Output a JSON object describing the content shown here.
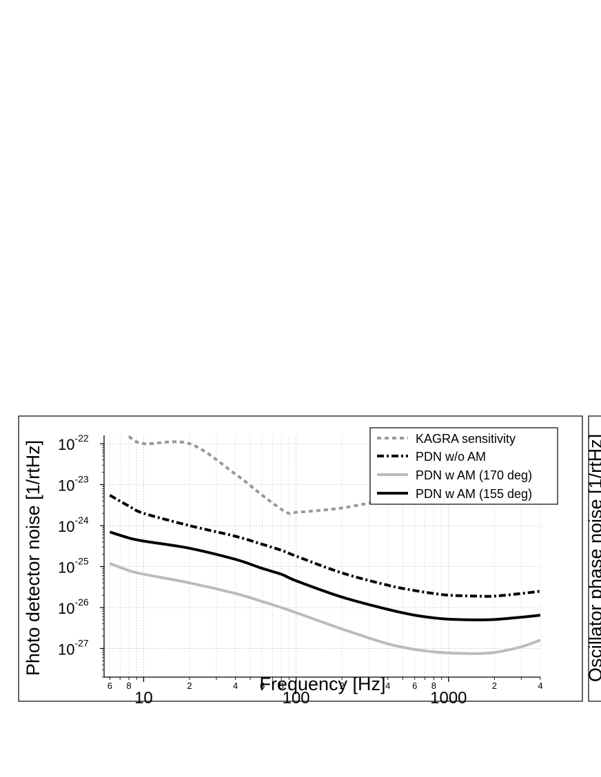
{
  "chart_data": {
    "type": "line",
    "xlabel": "Frequency [Hz]",
    "ylabel": "Photo detector noise [1/rtHz]",
    "right_panel_ylabel": "Oscillator phase noise [1/rtHz]",
    "x_scale": "log",
    "y_scale": "log",
    "xlim": [
      5.5,
      4000
    ],
    "ylim": [
      2e-28,
      1.6e-22
    ],
    "grid": true,
    "legend_position": "top-right",
    "x_major_ticks": [
      {
        "value": 10,
        "label": "10"
      },
      {
        "value": 100,
        "label": "100"
      },
      {
        "value": 1000,
        "label": "1000"
      }
    ],
    "x_minor_ticks": [
      {
        "value": 6,
        "label": "6"
      },
      {
        "value": 8,
        "label": "8"
      },
      {
        "value": 20,
        "label": "2"
      },
      {
        "value": 40,
        "label": "4"
      },
      {
        "value": 60,
        "label": "6"
      },
      {
        "value": 80,
        "label": "8"
      },
      {
        "value": 200,
        "label": "2"
      },
      {
        "value": 400,
        "label": "4"
      },
      {
        "value": 600,
        "label": "6"
      },
      {
        "value": 800,
        "label": "8"
      },
      {
        "value": 2000,
        "label": "2"
      },
      {
        "value": 4000,
        "label": "4"
      }
    ],
    "y_ticks": [
      {
        "exp": -27,
        "base": "10",
        "sup": "-27"
      },
      {
        "exp": -26,
        "base": "10",
        "sup": "-26"
      },
      {
        "exp": -25,
        "base": "10",
        "sup": "-25"
      },
      {
        "exp": -24,
        "base": "10",
        "sup": "-24"
      },
      {
        "exp": -23,
        "base": "10",
        "sup": "-23"
      },
      {
        "exp": -22,
        "base": "10",
        "sup": "-22"
      }
    ],
    "series": [
      {
        "name": "KAGRA sensitivity",
        "color": "#999999",
        "dash": "dotted",
        "x": [
          8,
          10,
          20,
          40,
          60,
          80,
          90,
          100,
          200,
          400,
          600,
          800,
          1000
        ],
        "y": [
          1.5e-22,
          1e-22,
          1e-22,
          1.8e-23,
          5.5e-24,
          2.5e-24,
          2e-24,
          2.1e-24,
          2.7e-24,
          4.5e-24,
          7e-24,
          1e-23,
          1.2e-23
        ]
      },
      {
        "name": "PDN w/o AM",
        "color": "#000000",
        "dash": "dashdot",
        "x": [
          6,
          8,
          10,
          20,
          40,
          60,
          80,
          100,
          200,
          400,
          600,
          800,
          1000,
          1500,
          2000,
          3000,
          4000
        ],
        "y": [
          5.5e-24,
          3e-24,
          2e-24,
          1e-24,
          5.5e-25,
          3.5e-25,
          2.5e-25,
          1.8e-25,
          7e-26,
          3.5e-26,
          2.6e-26,
          2.2e-26,
          2e-26,
          1.9e-26,
          1.9e-26,
          2.2e-26,
          2.5e-26
        ]
      },
      {
        "name": "PDN w AM (170 deg)",
        "color": "#bbbbbb",
        "dash": "solid",
        "x": [
          6,
          8,
          10,
          20,
          40,
          60,
          80,
          100,
          200,
          400,
          600,
          800,
          1000,
          1500,
          2000,
          3000,
          4000
        ],
        "y": [
          1.2e-25,
          8e-26,
          6.5e-26,
          4e-26,
          2.2e-26,
          1.4e-26,
          1e-26,
          7.5e-27,
          3e-27,
          1.3e-27,
          9.5e-28,
          8.3e-28,
          7.8e-28,
          7.5e-28,
          8e-28,
          1.1e-27,
          1.6e-27
        ]
      },
      {
        "name": "PDN w AM (155 deg)",
        "color": "#000000",
        "dash": "solid",
        "x": [
          6,
          8,
          10,
          20,
          40,
          60,
          80,
          100,
          200,
          400,
          600,
          800,
          1000,
          1500,
          2000,
          3000,
          4000
        ],
        "y": [
          7e-25,
          5e-25,
          4.2e-25,
          2.8e-25,
          1.5e-25,
          9e-26,
          6.5e-26,
          4.5e-26,
          1.8e-26,
          9e-27,
          6.5e-27,
          5.6e-27,
          5.2e-27,
          5e-27,
          5.1e-27,
          5.8e-27,
          6.5e-27
        ]
      }
    ]
  }
}
